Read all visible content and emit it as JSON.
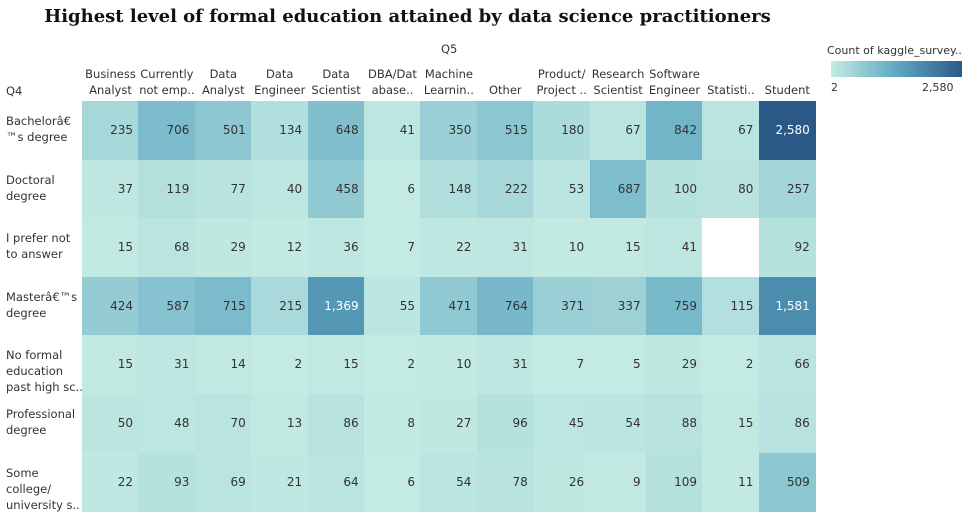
{
  "title": "Highest level of formal education attained by data science practitioners",
  "col_axis_label": "Q5",
  "row_axis_label": "Q4",
  "legend": {
    "title": "Count of kaggle_survey..",
    "min_label": "2",
    "max_label": "2,580"
  },
  "colors": {
    "low": "#c4ebe3",
    "mid": "#5fa8c2",
    "high": "#2a5987"
  },
  "chart_data": {
    "type": "heatmap",
    "columns": [
      "Business\nAnalyst",
      "Currently\nnot emp..",
      "Data\nAnalyst",
      "Data\nEngineer",
      "Data\nScientist",
      "DBA/Dat\nabase..",
      "Machine\nLearnin..",
      "Other",
      "Product/\nProject ..",
      "Research\nScientist",
      "Software\nEngineer",
      "Statisti..",
      "Student"
    ],
    "rows": [
      "Bachelorâ€\n™s degree",
      "Doctoral\ndegree",
      "I prefer not\nto answer",
      "Masterâ€™s\ndegree",
      "No formal\neducation\npast high sc..",
      "Professional\ndegree",
      "Some\ncollege/\nuniversity s.."
    ],
    "values": [
      [
        235,
        706,
        501,
        134,
        648,
        41,
        350,
        515,
        180,
        67,
        842,
        67,
        2580
      ],
      [
        37,
        119,
        77,
        40,
        458,
        6,
        148,
        222,
        53,
        687,
        100,
        80,
        257
      ],
      [
        15,
        68,
        29,
        12,
        36,
        7,
        22,
        31,
        10,
        15,
        41,
        null,
        92
      ],
      [
        424,
        587,
        715,
        215,
        1369,
        55,
        471,
        764,
        371,
        337,
        759,
        115,
        1581
      ],
      [
        15,
        31,
        14,
        2,
        15,
        2,
        10,
        31,
        7,
        5,
        29,
        2,
        66
      ],
      [
        50,
        48,
        70,
        13,
        86,
        8,
        27,
        96,
        45,
        54,
        88,
        15,
        86
      ],
      [
        22,
        93,
        69,
        21,
        64,
        6,
        54,
        78,
        26,
        9,
        109,
        11,
        509
      ]
    ],
    "value_labels": [
      [
        "235",
        "706",
        "501",
        "134",
        "648",
        "41",
        "350",
        "515",
        "180",
        "67",
        "842",
        "67",
        "2,580"
      ],
      [
        "37",
        "119",
        "77",
        "40",
        "458",
        "6",
        "148",
        "222",
        "53",
        "687",
        "100",
        "80",
        "257"
      ],
      [
        "15",
        "68",
        "29",
        "12",
        "36",
        "7",
        "22",
        "31",
        "10",
        "15",
        "41",
        "",
        "92"
      ],
      [
        "424",
        "587",
        "715",
        "215",
        "1,369",
        "55",
        "471",
        "764",
        "371",
        "337",
        "759",
        "115",
        "1,581"
      ],
      [
        "15",
        "31",
        "14",
        "2",
        "15",
        "2",
        "10",
        "31",
        "7",
        "5",
        "29",
        "2",
        "66"
      ],
      [
        "50",
        "48",
        "70",
        "13",
        "86",
        "8",
        "27",
        "96",
        "45",
        "54",
        "88",
        "15",
        "86"
      ],
      [
        "22",
        "93",
        "69",
        "21",
        "64",
        "6",
        "54",
        "78",
        "26",
        "9",
        "109",
        "11",
        "509"
      ]
    ],
    "color_range": [
      2,
      2580
    ]
  }
}
